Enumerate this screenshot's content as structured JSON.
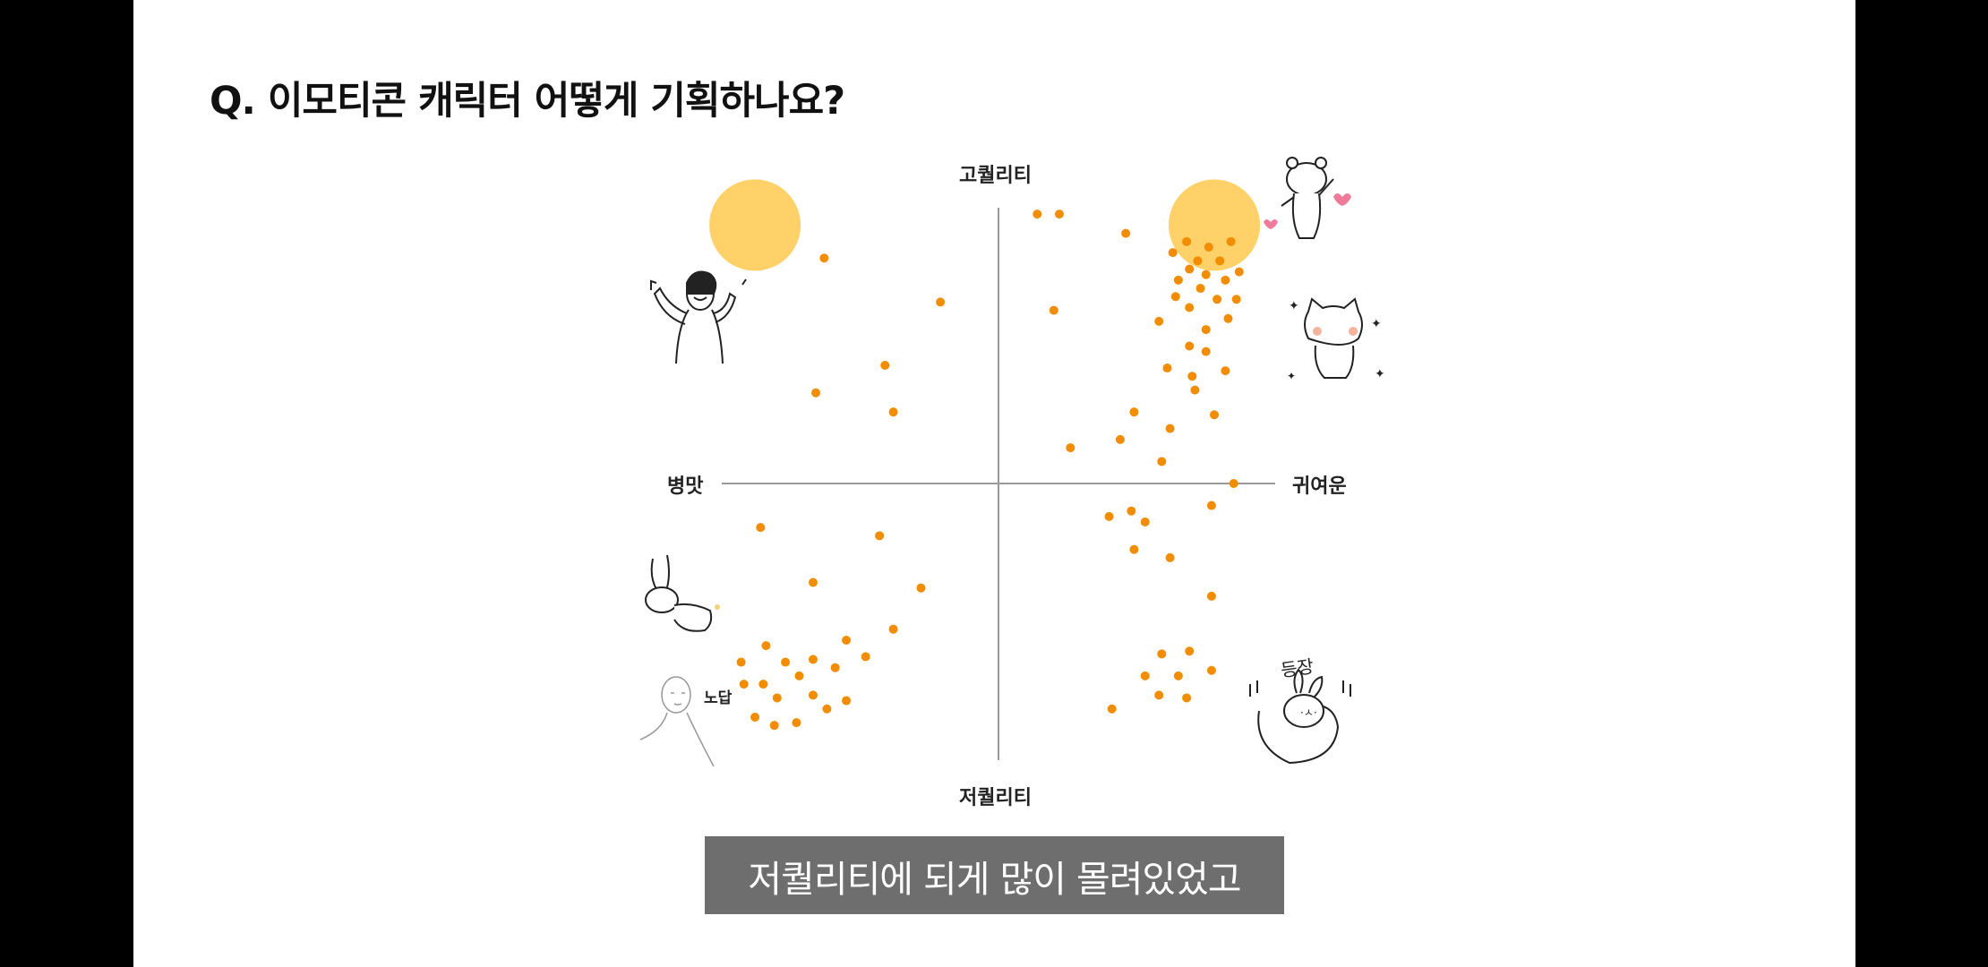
{
  "slide": {
    "title": "Q. 이모티콘 캐릭터 어떻게 기획하나요?",
    "subtitle": "저퀄리티에 되게 많이 몰려있었고",
    "sticker_text": {
      "nodap": "노답",
      "deungjang": "등장"
    }
  },
  "chart_data": {
    "type": "scatter",
    "axes": {
      "top": "고퀄리티",
      "bottom": "저퀄리티",
      "left": "병맛",
      "right": "귀여운"
    },
    "xlim": [
      -1,
      1
    ],
    "ylim": [
      -1,
      1
    ],
    "grid": false,
    "highlight_color": "#ffc94d",
    "point_color": "#f28c00",
    "highlights": [
      {
        "x": -0.88,
        "y": 0.94
      },
      {
        "x": 0.78,
        "y": 0.94
      }
    ],
    "points": [
      {
        "x": 0.14,
        "y": 0.98
      },
      {
        "x": 0.22,
        "y": 0.98
      },
      {
        "x": 0.46,
        "y": 0.91
      },
      {
        "x": 0.68,
        "y": 0.88
      },
      {
        "x": 0.76,
        "y": 0.86
      },
      {
        "x": 0.84,
        "y": 0.88
      },
      {
        "x": 0.63,
        "y": 0.84
      },
      {
        "x": 0.72,
        "y": 0.81
      },
      {
        "x": 0.8,
        "y": 0.81
      },
      {
        "x": 0.69,
        "y": 0.78
      },
      {
        "x": 0.75,
        "y": 0.76
      },
      {
        "x": 0.87,
        "y": 0.77
      },
      {
        "x": 0.65,
        "y": 0.74
      },
      {
        "x": 0.82,
        "y": 0.74
      },
      {
        "x": 0.73,
        "y": 0.71
      },
      {
        "x": 0.64,
        "y": 0.68
      },
      {
        "x": 0.79,
        "y": 0.67
      },
      {
        "x": 0.86,
        "y": 0.67
      },
      {
        "x": 0.69,
        "y": 0.64
      },
      {
        "x": 0.83,
        "y": 0.6
      },
      {
        "x": 0.58,
        "y": 0.59
      },
      {
        "x": 0.75,
        "y": 0.56
      },
      {
        "x": 0.69,
        "y": 0.5
      },
      {
        "x": 0.75,
        "y": 0.48
      },
      {
        "x": 0.61,
        "y": 0.42
      },
      {
        "x": 0.82,
        "y": 0.41
      },
      {
        "x": 0.7,
        "y": 0.39
      },
      {
        "x": 0.71,
        "y": 0.34
      },
      {
        "x": 0.49,
        "y": 0.26
      },
      {
        "x": 0.78,
        "y": 0.25
      },
      {
        "x": 0.62,
        "y": 0.2
      },
      {
        "x": 0.44,
        "y": 0.16
      },
      {
        "x": 0.26,
        "y": 0.13
      },
      {
        "x": 0.59,
        "y": 0.08
      },
      {
        "x": 0.2,
        "y": 0.63
      },
      {
        "x": 0.85,
        "y": 0.0
      },
      {
        "x": 0.77,
        "y": -0.08
      },
      {
        "x": 0.48,
        "y": -0.1
      },
      {
        "x": 0.4,
        "y": -0.12
      },
      {
        "x": 0.53,
        "y": -0.14
      },
      {
        "x": 0.49,
        "y": -0.24
      },
      {
        "x": 0.62,
        "y": -0.27
      },
      {
        "x": 0.77,
        "y": -0.41
      },
      {
        "x": 0.59,
        "y": -0.62
      },
      {
        "x": 0.69,
        "y": -0.61
      },
      {
        "x": 0.53,
        "y": -0.7
      },
      {
        "x": 0.65,
        "y": -0.7
      },
      {
        "x": 0.77,
        "y": -0.68
      },
      {
        "x": 0.58,
        "y": -0.77
      },
      {
        "x": 0.68,
        "y": -0.78
      },
      {
        "x": 0.41,
        "y": -0.82
      },
      {
        "x": -0.63,
        "y": 0.82
      },
      {
        "x": -0.21,
        "y": 0.66
      },
      {
        "x": -0.41,
        "y": 0.43
      },
      {
        "x": -0.66,
        "y": 0.33
      },
      {
        "x": -0.38,
        "y": 0.26
      },
      {
        "x": -0.86,
        "y": -0.16
      },
      {
        "x": -0.43,
        "y": -0.19
      },
      {
        "x": -0.67,
        "y": -0.36
      },
      {
        "x": -0.28,
        "y": -0.38
      },
      {
        "x": -0.38,
        "y": -0.53
      },
      {
        "x": -0.84,
        "y": -0.59
      },
      {
        "x": -0.55,
        "y": -0.57
      },
      {
        "x": -0.48,
        "y": -0.63
      },
      {
        "x": -0.67,
        "y": -0.64
      },
      {
        "x": -0.77,
        "y": -0.65
      },
      {
        "x": -0.59,
        "y": -0.67
      },
      {
        "x": -0.93,
        "y": -0.65
      },
      {
        "x": -0.92,
        "y": -0.73
      },
      {
        "x": -0.72,
        "y": -0.7
      },
      {
        "x": -0.85,
        "y": -0.73
      },
      {
        "x": -0.55,
        "y": -0.79
      },
      {
        "x": -0.67,
        "y": -0.77
      },
      {
        "x": -0.8,
        "y": -0.78
      },
      {
        "x": -0.62,
        "y": -0.82
      },
      {
        "x": -0.88,
        "y": -0.85
      },
      {
        "x": -0.73,
        "y": -0.87
      },
      {
        "x": -0.81,
        "y": -0.88
      }
    ]
  }
}
